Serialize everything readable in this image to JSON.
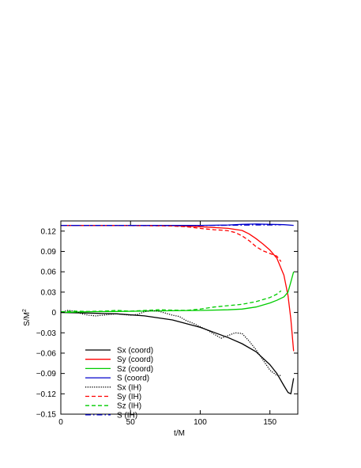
{
  "chart_data": {
    "type": "line",
    "title": "",
    "xlabel": "t/M",
    "ylabel": "S/M",
    "ylabel_superscript": "2",
    "xlim": [
      0,
      170
    ],
    "ylim": [
      -0.15,
      0.135
    ],
    "xticks": [
      0,
      50,
      100,
      150
    ],
    "xtick_labels": [
      "0",
      "50",
      "100",
      "150"
    ],
    "yticks": [
      -0.15,
      -0.12,
      -0.09,
      -0.06,
      -0.03,
      0,
      0.03,
      0.06,
      0.09,
      0.12
    ],
    "ytick_labels": [
      "−0.15",
      "−0.12",
      "−0.09",
      "−0.06",
      "−0.03",
      "0",
      "0.03",
      "0.06",
      "0.09",
      "0.12"
    ],
    "grid": false,
    "legend_position": "bottom-left",
    "series": [
      {
        "name": "Sx (coord)",
        "color": "#000000",
        "dash": "solid",
        "x": [
          0,
          20,
          40,
          60,
          80,
          100,
          120,
          130,
          140,
          150,
          155,
          160,
          163,
          165,
          167
        ],
        "y": [
          0,
          -0.001,
          -0.002,
          -0.005,
          -0.011,
          -0.022,
          -0.037,
          -0.046,
          -0.058,
          -0.077,
          -0.09,
          -0.108,
          -0.118,
          -0.12,
          -0.097
        ]
      },
      {
        "name": "Sy (coord)",
        "color": "#ff0000",
        "dash": "solid",
        "x": [
          0,
          20,
          40,
          60,
          80,
          100,
          120,
          130,
          135,
          140,
          145,
          150,
          155,
          160,
          163,
          165,
          167
        ],
        "y": [
          0.1285,
          0.1284,
          0.1283,
          0.1282,
          0.128,
          0.1265,
          0.124,
          0.121,
          0.116,
          0.109,
          0.101,
          0.092,
          0.08,
          0.055,
          0.025,
          -0.01,
          -0.057
        ]
      },
      {
        "name": "Sz (coord)",
        "color": "#00cc00",
        "dash": "solid",
        "x": [
          0,
          20,
          40,
          60,
          80,
          100,
          120,
          130,
          140,
          150,
          155,
          160,
          163,
          165,
          167
        ],
        "y": [
          0,
          0.001,
          0.0015,
          0.002,
          0.0025,
          0.003,
          0.004,
          0.005,
          0.008,
          0.014,
          0.018,
          0.023,
          0.03,
          0.045,
          0.06
        ]
      },
      {
        "name": "S (coord)",
        "color": "#0000cc",
        "dash": "solid",
        "x": [
          0,
          20,
          40,
          60,
          80,
          100,
          120,
          130,
          140,
          150,
          160,
          167
        ],
        "y": [
          0.1285,
          0.1284,
          0.1284,
          0.1284,
          0.1284,
          0.1285,
          0.129,
          0.13,
          0.1305,
          0.13,
          0.1295,
          0.1285
        ]
      },
      {
        "name": "Sx (IH)",
        "color": "#000000",
        "dash": "dotted",
        "x": [
          0,
          5,
          10,
          15,
          20,
          25,
          30,
          35,
          40,
          45,
          50,
          55,
          60,
          65,
          70,
          75,
          80,
          85,
          90,
          95,
          100,
          105,
          110,
          115,
          120,
          125,
          130,
          135,
          140,
          145,
          150,
          155,
          158
        ],
        "y": [
          0,
          0.003,
          0.002,
          -0.002,
          -0.004,
          -0.005,
          -0.004,
          -0.003,
          -0.002,
          -0.003,
          -0.004,
          -0.003,
          0.001,
          0.003,
          0.002,
          -0.001,
          -0.004,
          -0.006,
          -0.012,
          -0.016,
          -0.021,
          -0.026,
          -0.032,
          -0.038,
          -0.034,
          -0.03,
          -0.031,
          -0.042,
          -0.055,
          -0.07,
          -0.085,
          -0.093,
          -0.093
        ]
      },
      {
        "name": "Sy (IH)",
        "color": "#ff0000",
        "dash": "dashed",
        "x": [
          0,
          20,
          40,
          60,
          80,
          90,
          100,
          105,
          110,
          115,
          120,
          125,
          130,
          135,
          140,
          145,
          150,
          155,
          158
        ],
        "y": [
          0.1285,
          0.1283,
          0.1282,
          0.128,
          0.1275,
          0.1265,
          0.124,
          0.123,
          0.122,
          0.1215,
          0.1205,
          0.118,
          0.113,
          0.106,
          0.097,
          0.091,
          0.087,
          0.083,
          0.075
        ]
      },
      {
        "name": "Sz (IH)",
        "color": "#00cc00",
        "dash": "dashed",
        "x": [
          0,
          10,
          20,
          30,
          40,
          50,
          60,
          70,
          80,
          90,
          100,
          110,
          120,
          130,
          140,
          150,
          155,
          158
        ],
        "y": [
          0.001,
          0.002,
          0.0015,
          0.002,
          0.003,
          0.002,
          0.003,
          0.004,
          0.0035,
          0.003,
          0.005,
          0.008,
          0.01,
          0.012,
          0.016,
          0.022,
          0.027,
          0.032
        ]
      },
      {
        "name": "S (IH)",
        "color": "#0000cc",
        "dash": "dashdot",
        "x": [
          0,
          20,
          40,
          60,
          80,
          100,
          120,
          130,
          140,
          150,
          155,
          158
        ],
        "y": [
          0.1285,
          0.1285,
          0.1284,
          0.1283,
          0.1283,
          0.1284,
          0.1286,
          0.1288,
          0.129,
          0.129,
          0.1292,
          0.1293
        ]
      }
    ]
  }
}
